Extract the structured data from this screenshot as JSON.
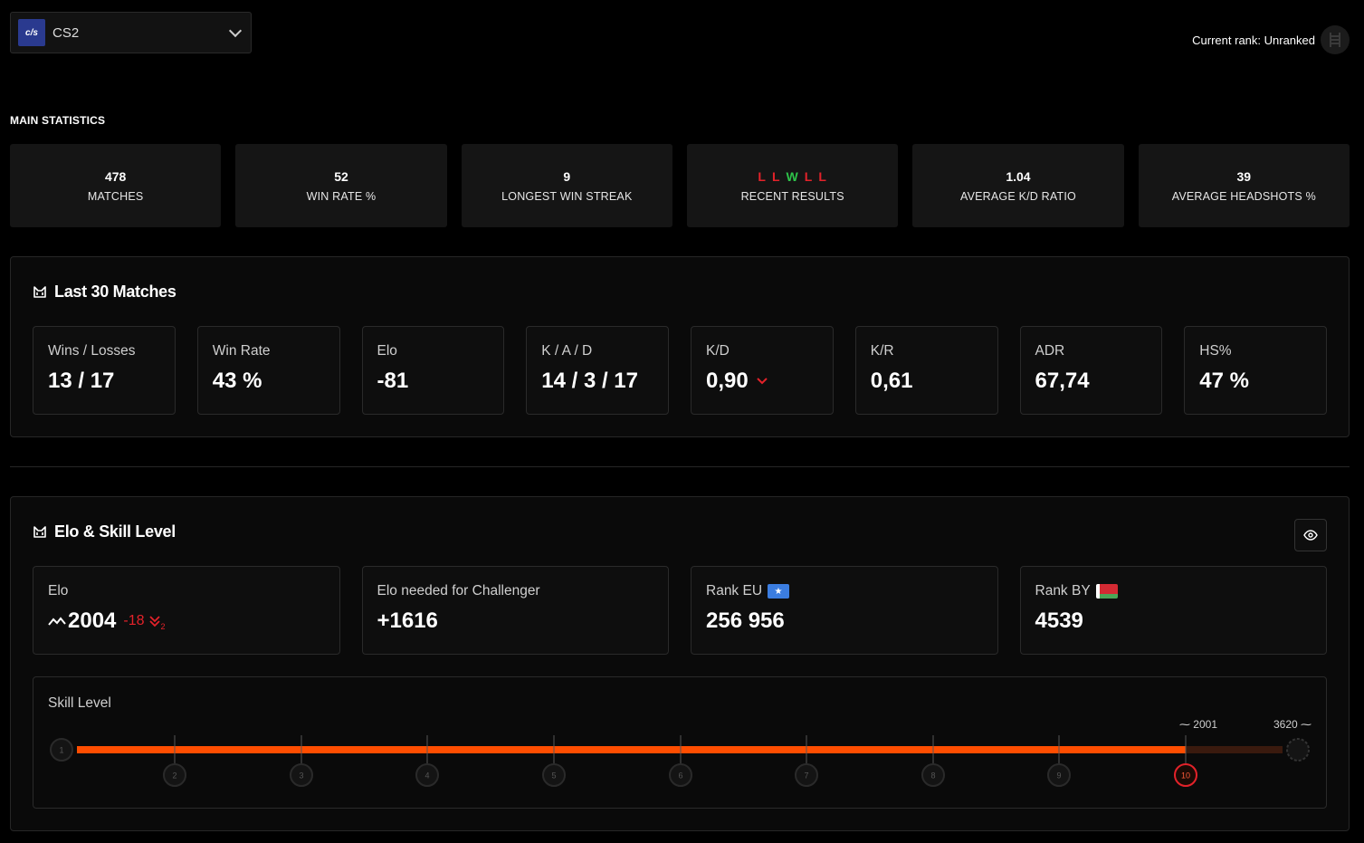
{
  "game": {
    "logo": "c/s",
    "name": "CS2"
  },
  "rank_current": "Current rank: Unranked",
  "main": {
    "title": "MAIN STATISTICS",
    "stats": [
      {
        "value": "478",
        "label": "MATCHES"
      },
      {
        "value": "52",
        "label": "WIN RATE %"
      },
      {
        "value": "9",
        "label": "LONGEST WIN STREAK"
      },
      {
        "value": "",
        "label": "RECENT RESULTS"
      },
      {
        "value": "1.04",
        "label": "AVERAGE K/D RATIO"
      },
      {
        "value": "39",
        "label": "AVERAGE HEADSHOTS %"
      }
    ],
    "recent_results": [
      "L",
      "L",
      "W",
      "L",
      "L"
    ]
  },
  "last30": {
    "title": "Last 30 Matches",
    "cards": [
      {
        "label": "Wins / Losses",
        "value": "13 / 17"
      },
      {
        "label": "Win Rate",
        "value": "43 %"
      },
      {
        "label": "Elo",
        "value": "-81"
      },
      {
        "label": "K / A / D",
        "value": "14 / 3 / 17"
      },
      {
        "label": "K/D",
        "value": "0,90"
      },
      {
        "label": "K/R",
        "value": "0,61"
      },
      {
        "label": "ADR",
        "value": "67,74"
      },
      {
        "label": "HS%",
        "value": "47 %"
      }
    ]
  },
  "elo_skill": {
    "title": "Elo & Skill Level",
    "elo": {
      "label": "Elo",
      "value": "2004",
      "delta": "-18",
      "streak": "2"
    },
    "challenger": {
      "label": "Elo needed for Challenger",
      "value": "+1616"
    },
    "rank_eu": {
      "label": "Rank EU",
      "value": "256 956"
    },
    "rank_by": {
      "label": "Rank BY",
      "value": "4539"
    },
    "skill": {
      "label": "Skill Level",
      "levels": [
        "1",
        "2",
        "3",
        "4",
        "5",
        "6",
        "7",
        "8",
        "9",
        "10"
      ],
      "current_level": 10,
      "marker_left": "2001",
      "marker_right": "3620",
      "accent": "#ff4d00"
    }
  }
}
